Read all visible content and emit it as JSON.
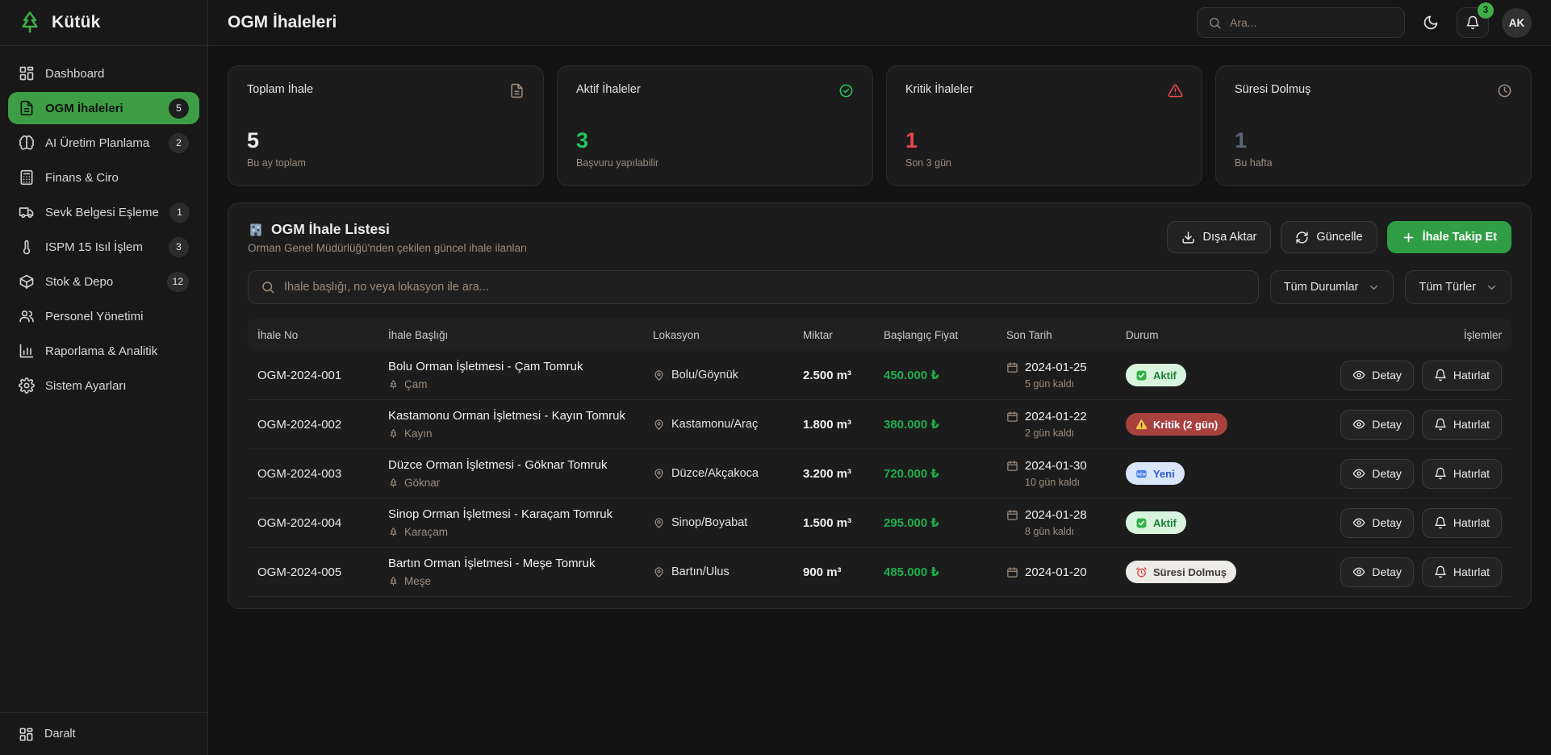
{
  "brand": {
    "name": "Kütük"
  },
  "colors": {
    "accent_green": "#3d9e45",
    "bright_green": "#22c55e",
    "price_green": "#1fae4e",
    "critical_red": "#e5484d",
    "expired_gray": "#5d6675",
    "muted_warm": "#9b8c7f"
  },
  "sidebar": {
    "items": [
      {
        "label": "Dashboard",
        "icon": "dashboard",
        "badge": null,
        "active": false
      },
      {
        "label": "OGM İhaleleri",
        "icon": "file-text",
        "badge": "5",
        "active": true
      },
      {
        "label": "AI Üretim Planlama",
        "icon": "brain",
        "badge": "2",
        "active": false
      },
      {
        "label": "Finans & Ciro",
        "icon": "calculator",
        "badge": null,
        "active": false
      },
      {
        "label": "Sevk Belgesi Eşleme",
        "icon": "truck",
        "badge": "1",
        "active": false
      },
      {
        "label": "ISPM 15 Isıl İşlem",
        "icon": "thermometer",
        "badge": "3",
        "active": false
      },
      {
        "label": "Stok & Depo",
        "icon": "package",
        "badge": "12",
        "active": false
      },
      {
        "label": "Personel Yönetimi",
        "icon": "users",
        "badge": null,
        "active": false
      },
      {
        "label": "Raporlama & Analitik",
        "icon": "bar-chart",
        "badge": null,
        "active": false
      },
      {
        "label": "Sistem Ayarları",
        "icon": "gear",
        "badge": null,
        "active": false
      }
    ],
    "collapse_label": "Daralt"
  },
  "header": {
    "title": "OGM İhaleleri",
    "search_placeholder": "Ara...",
    "notification_count": "3",
    "avatar_initials": "AK"
  },
  "stats": [
    {
      "label": "Toplam İhale",
      "value": "5",
      "sub": "Bu ay toplam",
      "icon": "document",
      "value_color": "#ececec"
    },
    {
      "label": "Aktif İhaleler",
      "value": "3",
      "sub": "Başvuru yapılabilir",
      "icon": "check-circle",
      "value_color": "#22c55e"
    },
    {
      "label": "Kritik İhaleler",
      "value": "1",
      "sub": "Son 3 gün",
      "icon": "alert-triangle",
      "value_color": "#e5484d"
    },
    {
      "label": "Süresi Dolmuş",
      "value": "1",
      "sub": "Bu hafta",
      "icon": "clock",
      "value_color": "#5d6675"
    }
  ],
  "list_section": {
    "title": "OGM İhale Listesi",
    "subtitle": "Orman Genel Müdürlüğü'nden çekilen güncel ihale ilanları",
    "export_label": "Dışa Aktar",
    "refresh_label": "Güncelle",
    "track_label": "İhale Takip Et",
    "search_placeholder": "İhale başlığı, no veya lokasyon ile ara...",
    "filters": [
      {
        "label": "Tüm Durumlar"
      },
      {
        "label": "Tüm Türler"
      }
    ]
  },
  "table": {
    "columns": [
      "İhale No",
      "İhale Başlığı",
      "Lokasyon",
      "Miktar",
      "Başlangıç Fiyat",
      "Son Tarih",
      "Durum",
      "İşlemler"
    ],
    "detail_label": "Detay",
    "remind_label": "Hatırlat",
    "rows": [
      {
        "no": "OGM-2024-001",
        "title": "Bolu Orman İşletmesi - Çam Tomruk",
        "wood": "Çam",
        "location": "Bolu/Göynük",
        "quantity": "2.500 m³",
        "price": "450.000 ₺",
        "date": "2024-01-25",
        "days_left": "5 gün kaldı",
        "status": {
          "label": "Aktif",
          "type": "active"
        }
      },
      {
        "no": "OGM-2024-002",
        "title": "Kastamonu Orman İşletmesi - Kayın Tomruk",
        "wood": "Kayın",
        "location": "Kastamonu/Araç",
        "quantity": "1.800 m³",
        "price": "380.000 ₺",
        "date": "2024-01-22",
        "days_left": "2 gün kaldı",
        "status": {
          "label": "Kritik (2 gün)",
          "type": "critical"
        }
      },
      {
        "no": "OGM-2024-003",
        "title": "Düzce Orman İşletmesi - Göknar Tomruk",
        "wood": "Göknar",
        "location": "Düzce/Akçakoca",
        "quantity": "3.200 m³",
        "price": "720.000 ₺",
        "date": "2024-01-30",
        "days_left": "10 gün kaldı",
        "status": {
          "label": "Yeni",
          "type": "new"
        }
      },
      {
        "no": "OGM-2024-004",
        "title": "Sinop Orman İşletmesi - Karaçam Tomruk",
        "wood": "Karaçam",
        "location": "Sinop/Boyabat",
        "quantity": "1.500 m³",
        "price": "295.000 ₺",
        "date": "2024-01-28",
        "days_left": "8 gün kaldı",
        "status": {
          "label": "Aktif",
          "type": "active"
        }
      },
      {
        "no": "OGM-2024-005",
        "title": "Bartın Orman İşletmesi - Meşe Tomruk",
        "wood": "Meşe",
        "location": "Bartın/Ulus",
        "quantity": "900 m³",
        "price": "485.000 ₺",
        "date": "2024-01-20",
        "days_left": null,
        "status": {
          "label": "Süresi Dolmuş",
          "type": "expired"
        }
      }
    ]
  }
}
